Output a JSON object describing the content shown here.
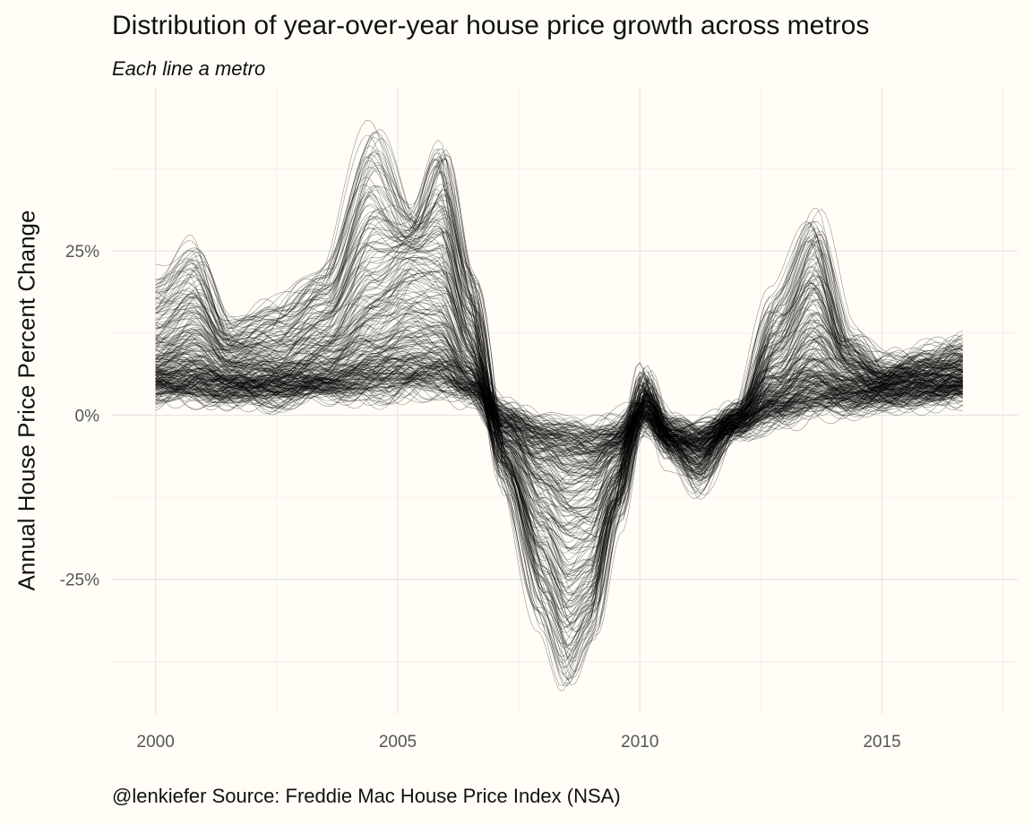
{
  "chart_data": {
    "type": "line",
    "title": "Distribution of year-over-year house price growth across metros",
    "subtitle": "Each line a metro",
    "caption": "@lenkiefer Source: Freddie Mac House Price Index (NSA)",
    "ylabel": "Annual House Price Percent Change",
    "xlabel": "",
    "x_ticks": [
      {
        "value": 2000,
        "label": "2000"
      },
      {
        "value": 2005,
        "label": "2005"
      },
      {
        "value": 2010,
        "label": "2010"
      },
      {
        "value": 2015,
        "label": "2015"
      }
    ],
    "y_ticks": [
      {
        "value": 25,
        "label": "25%"
      },
      {
        "value": 0,
        "label": "0%"
      },
      {
        "value": -25,
        "label": "-25%"
      }
    ],
    "xlim": [
      1999.1,
      2017.8
    ],
    "ylim": [
      -45.5,
      50
    ],
    "x_range": [
      2000.0,
      2016.67
    ],
    "grid": true,
    "legend": "none",
    "line_color": "#000000",
    "background": "#fffdf6",
    "representative_series": [
      {
        "x": [
          2000.0,
          2000.8,
          2001.5,
          2002.5,
          2003.5,
          2004.5,
          2005.3,
          2005.9,
          2006.5,
          2007.2,
          2008.0,
          2008.5,
          2009.0,
          2009.5,
          2010.1,
          2010.6,
          2011.2,
          2012.0,
          2012.8,
          2013.6,
          2014.3,
          2015.0,
          2016.0,
          2016.67
        ],
        "values": [
          4,
          4,
          3.5,
          3.5,
          4,
          4.5,
          5,
          5,
          3.5,
          0,
          -2,
          -2.5,
          -3,
          -2.5,
          0,
          -2.5,
          -3,
          -1.5,
          0.5,
          2,
          2.5,
          3,
          3.5,
          4
        ]
      },
      {
        "x": [
          2000.0,
          2000.8,
          2001.5,
          2002.5,
          2003.5,
          2004.5,
          2005.3,
          2005.9,
          2006.5,
          2007.2,
          2008.0,
          2008.5,
          2009.0,
          2009.5,
          2010.1,
          2010.6,
          2011.2,
          2012.0,
          2012.8,
          2013.6,
          2014.3,
          2015.0,
          2016.0,
          2016.67
        ],
        "values": [
          10,
          13,
          9,
          9,
          12,
          20,
          25,
          24,
          12,
          -6,
          -18,
          -24,
          -22,
          -12,
          3,
          -4,
          -7,
          0,
          8,
          15,
          8,
          6,
          7,
          8
        ]
      },
      {
        "x": [
          2000.0,
          2000.8,
          2001.5,
          2002.5,
          2003.5,
          2004.5,
          2005.3,
          2005.9,
          2006.5,
          2007.2,
          2008.0,
          2008.5,
          2009.0,
          2009.5,
          2010.1,
          2010.6,
          2011.2,
          2012.0,
          2012.8,
          2013.6,
          2014.3,
          2015.0,
          2016.0,
          2016.67
        ],
        "values": [
          21,
          25,
          14,
          17,
          22,
          44,
          30,
          42,
          22,
          -10,
          -32,
          -41,
          -34,
          -16,
          6,
          -5,
          -11,
          -1,
          18,
          31,
          12,
          7,
          9,
          10
        ]
      }
    ]
  }
}
